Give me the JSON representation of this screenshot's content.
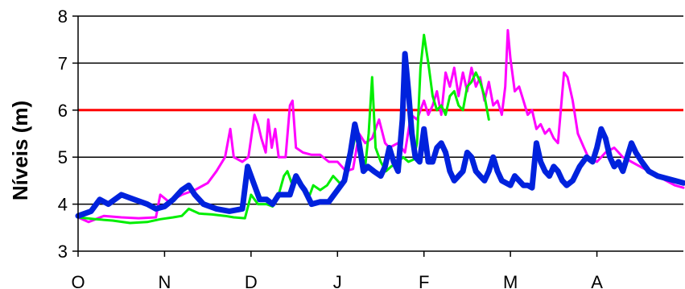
{
  "chart_data": {
    "type": "line",
    "title": "",
    "xlabel": "",
    "ylabel": "Níveis (m)",
    "ylim": [
      3,
      8
    ],
    "yticks": [
      3,
      4,
      5,
      6,
      7,
      8
    ],
    "xlim": [
      0,
      7
    ],
    "xticks": [
      {
        "label": "O",
        "x": 0
      },
      {
        "label": "N",
        "x": 1
      },
      {
        "label": "D",
        "x": 2
      },
      {
        "label": "J",
        "x": 3
      },
      {
        "label": "F",
        "x": 4
      },
      {
        "label": "M",
        "x": 5
      },
      {
        "label": "A",
        "x": 6
      }
    ],
    "grid": {
      "horizontal": true,
      "vertical": false
    },
    "legend": "none",
    "reference_line": {
      "y": 6,
      "color": "#ff0000"
    },
    "series": [
      {
        "color": "#ff00ff",
        "width": 3,
        "points": [
          [
            0.0,
            3.72
          ],
          [
            0.12,
            3.62
          ],
          [
            0.3,
            3.75
          ],
          [
            0.5,
            3.72
          ],
          [
            0.7,
            3.7
          ],
          [
            0.9,
            3.72
          ],
          [
            0.95,
            4.2
          ],
          [
            1.05,
            4.05
          ],
          [
            1.2,
            4.2
          ],
          [
            1.35,
            4.3
          ],
          [
            1.5,
            4.45
          ],
          [
            1.6,
            4.7
          ],
          [
            1.7,
            5.0
          ],
          [
            1.76,
            5.6
          ],
          [
            1.8,
            5.0
          ],
          [
            1.9,
            4.9
          ],
          [
            1.97,
            5.0
          ],
          [
            2.04,
            5.9
          ],
          [
            2.08,
            5.7
          ],
          [
            2.12,
            5.4
          ],
          [
            2.17,
            5.1
          ],
          [
            2.2,
            5.8
          ],
          [
            2.24,
            5.2
          ],
          [
            2.28,
            5.6
          ],
          [
            2.32,
            5.0
          ],
          [
            2.4,
            5.0
          ],
          [
            2.45,
            6.1
          ],
          [
            2.48,
            6.2
          ],
          [
            2.52,
            5.2
          ],
          [
            2.6,
            5.1
          ],
          [
            2.7,
            5.05
          ],
          [
            2.8,
            5.05
          ],
          [
            2.9,
            4.9
          ],
          [
            3.0,
            4.9
          ],
          [
            3.1,
            4.7
          ],
          [
            3.18,
            4.75
          ],
          [
            3.25,
            5.5
          ],
          [
            3.32,
            5.3
          ],
          [
            3.4,
            5.4
          ],
          [
            3.48,
            5.8
          ],
          [
            3.55,
            5.3
          ],
          [
            3.6,
            5.2
          ],
          [
            3.7,
            5.3
          ],
          [
            3.78,
            5.1
          ],
          [
            3.85,
            5.9
          ],
          [
            3.92,
            5.8
          ],
          [
            4.0,
            6.2
          ],
          [
            4.05,
            5.9
          ],
          [
            4.1,
            6.1
          ],
          [
            4.15,
            6.4
          ],
          [
            4.2,
            5.9
          ],
          [
            4.25,
            6.8
          ],
          [
            4.3,
            6.5
          ],
          [
            4.35,
            6.9
          ],
          [
            4.4,
            6.3
          ],
          [
            4.45,
            6.8
          ],
          [
            4.5,
            6.4
          ],
          [
            4.55,
            6.9
          ],
          [
            4.6,
            6.5
          ],
          [
            4.65,
            6.7
          ],
          [
            4.7,
            6.2
          ],
          [
            4.75,
            6.6
          ],
          [
            4.8,
            6.1
          ],
          [
            4.85,
            6.2
          ],
          [
            4.9,
            5.9
          ],
          [
            4.94,
            6.5
          ],
          [
            4.97,
            7.7
          ],
          [
            5.0,
            7.1
          ],
          [
            5.05,
            6.4
          ],
          [
            5.1,
            6.5
          ],
          [
            5.15,
            6.2
          ],
          [
            5.2,
            5.9
          ],
          [
            5.25,
            6.0
          ],
          [
            5.3,
            5.6
          ],
          [
            5.35,
            5.7
          ],
          [
            5.4,
            5.5
          ],
          [
            5.45,
            5.6
          ],
          [
            5.5,
            5.4
          ],
          [
            5.55,
            5.3
          ],
          [
            5.62,
            6.8
          ],
          [
            5.66,
            6.7
          ],
          [
            5.72,
            6.2
          ],
          [
            5.78,
            5.5
          ],
          [
            5.85,
            5.2
          ],
          [
            5.9,
            5.0
          ],
          [
            6.0,
            4.9
          ],
          [
            6.1,
            5.1
          ],
          [
            6.2,
            5.2
          ],
          [
            6.3,
            5.0
          ],
          [
            6.4,
            4.9
          ],
          [
            6.5,
            4.8
          ],
          [
            6.6,
            4.7
          ],
          [
            6.7,
            4.6
          ],
          [
            6.8,
            4.5
          ],
          [
            6.9,
            4.4
          ],
          [
            7.0,
            4.35
          ]
        ]
      },
      {
        "color": "#00ee00",
        "width": 3,
        "points": [
          [
            0.0,
            3.72
          ],
          [
            0.2,
            3.68
          ],
          [
            0.4,
            3.65
          ],
          [
            0.6,
            3.6
          ],
          [
            0.8,
            3.62
          ],
          [
            0.95,
            3.68
          ],
          [
            1.1,
            3.72
          ],
          [
            1.2,
            3.75
          ],
          [
            1.28,
            3.9
          ],
          [
            1.4,
            3.8
          ],
          [
            1.55,
            3.78
          ],
          [
            1.7,
            3.75
          ],
          [
            1.8,
            3.72
          ],
          [
            1.93,
            3.7
          ],
          [
            2.0,
            4.2
          ],
          [
            2.08,
            4.0
          ],
          [
            2.18,
            4.0
          ],
          [
            2.25,
            3.95
          ],
          [
            2.32,
            4.2
          ],
          [
            2.38,
            4.6
          ],
          [
            2.42,
            4.7
          ],
          [
            2.48,
            4.4
          ],
          [
            2.55,
            4.5
          ],
          [
            2.62,
            4.3
          ],
          [
            2.68,
            4.2
          ],
          [
            2.72,
            4.4
          ],
          [
            2.8,
            4.3
          ],
          [
            2.88,
            4.4
          ],
          [
            2.95,
            4.6
          ],
          [
            3.0,
            4.5
          ],
          [
            3.05,
            4.4
          ],
          [
            3.12,
            4.8
          ],
          [
            3.18,
            5.2
          ],
          [
            3.22,
            5.6
          ],
          [
            3.28,
            5.0
          ],
          [
            3.32,
            4.8
          ],
          [
            3.36,
            5.5
          ],
          [
            3.4,
            6.7
          ],
          [
            3.44,
            5.2
          ],
          [
            3.5,
            4.9
          ],
          [
            3.56,
            4.7
          ],
          [
            3.62,
            4.8
          ],
          [
            3.7,
            4.9
          ],
          [
            3.76,
            5.0
          ],
          [
            3.82,
            4.9
          ],
          [
            3.88,
            4.95
          ],
          [
            3.92,
            5.3
          ],
          [
            3.96,
            6.9
          ],
          [
            4.0,
            7.6
          ],
          [
            4.05,
            7.0
          ],
          [
            4.1,
            6.3
          ],
          [
            4.15,
            6.0
          ],
          [
            4.2,
            6.1
          ],
          [
            4.25,
            5.9
          ],
          [
            4.3,
            6.3
          ],
          [
            4.35,
            6.4
          ],
          [
            4.4,
            6.1
          ],
          [
            4.45,
            6.0
          ],
          [
            4.5,
            6.5
          ],
          [
            4.55,
            6.6
          ],
          [
            4.6,
            6.8
          ],
          [
            4.65,
            6.6
          ],
          [
            4.7,
            6.3
          ],
          [
            4.75,
            5.8
          ]
        ]
      },
      {
        "color": "#0022dd",
        "width": 7,
        "points": [
          [
            0.0,
            3.75
          ],
          [
            0.15,
            3.85
          ],
          [
            0.25,
            4.1
          ],
          [
            0.35,
            4.0
          ],
          [
            0.5,
            4.2
          ],
          [
            0.65,
            4.1
          ],
          [
            0.8,
            4.0
          ],
          [
            0.9,
            3.9
          ],
          [
            1.0,
            3.95
          ],
          [
            1.1,
            4.1
          ],
          [
            1.2,
            4.3
          ],
          [
            1.28,
            4.4
          ],
          [
            1.35,
            4.2
          ],
          [
            1.45,
            4.0
          ],
          [
            1.6,
            3.9
          ],
          [
            1.75,
            3.85
          ],
          [
            1.9,
            3.9
          ],
          [
            1.96,
            4.8
          ],
          [
            2.02,
            4.5
          ],
          [
            2.1,
            4.1
          ],
          [
            2.18,
            4.1
          ],
          [
            2.25,
            4.0
          ],
          [
            2.32,
            4.2
          ],
          [
            2.45,
            4.2
          ],
          [
            2.52,
            4.6
          ],
          [
            2.58,
            4.4
          ],
          [
            2.62,
            4.3
          ],
          [
            2.7,
            4.0
          ],
          [
            2.8,
            4.05
          ],
          [
            2.9,
            4.05
          ],
          [
            3.0,
            4.3
          ],
          [
            3.08,
            4.5
          ],
          [
            3.15,
            5.1
          ],
          [
            3.2,
            5.7
          ],
          [
            3.25,
            5.3
          ],
          [
            3.3,
            4.7
          ],
          [
            3.35,
            4.8
          ],
          [
            3.42,
            4.7
          ],
          [
            3.5,
            4.6
          ],
          [
            3.55,
            4.8
          ],
          [
            3.6,
            5.2
          ],
          [
            3.65,
            4.9
          ],
          [
            3.7,
            4.7
          ],
          [
            3.75,
            5.8
          ],
          [
            3.78,
            7.2
          ],
          [
            3.82,
            6.4
          ],
          [
            3.86,
            5.5
          ],
          [
            3.9,
            5.0
          ],
          [
            3.95,
            4.9
          ],
          [
            4.0,
            5.6
          ],
          [
            4.05,
            4.9
          ],
          [
            4.1,
            4.9
          ],
          [
            4.15,
            5.2
          ],
          [
            4.2,
            5.3
          ],
          [
            4.25,
            5.1
          ],
          [
            4.3,
            4.7
          ],
          [
            4.35,
            4.5
          ],
          [
            4.4,
            4.6
          ],
          [
            4.45,
            4.7
          ],
          [
            4.5,
            5.1
          ],
          [
            4.55,
            5.0
          ],
          [
            4.6,
            4.7
          ],
          [
            4.65,
            4.6
          ],
          [
            4.7,
            4.5
          ],
          [
            4.75,
            4.7
          ],
          [
            4.8,
            5.0
          ],
          [
            4.85,
            4.7
          ],
          [
            4.9,
            4.5
          ],
          [
            5.0,
            4.4
          ],
          [
            5.05,
            4.6
          ],
          [
            5.1,
            4.5
          ],
          [
            5.15,
            4.4
          ],
          [
            5.2,
            4.4
          ],
          [
            5.25,
            4.35
          ],
          [
            5.3,
            5.3
          ],
          [
            5.35,
            4.9
          ],
          [
            5.4,
            4.7
          ],
          [
            5.45,
            4.6
          ],
          [
            5.5,
            4.8
          ],
          [
            5.55,
            4.7
          ],
          [
            5.6,
            4.5
          ],
          [
            5.65,
            4.4
          ],
          [
            5.72,
            4.5
          ],
          [
            5.8,
            4.8
          ],
          [
            5.88,
            5.0
          ],
          [
            5.95,
            4.9
          ],
          [
            6.0,
            5.2
          ],
          [
            6.05,
            5.6
          ],
          [
            6.1,
            5.4
          ],
          [
            6.15,
            5.0
          ],
          [
            6.2,
            4.8
          ],
          [
            6.25,
            4.9
          ],
          [
            6.3,
            4.7
          ],
          [
            6.35,
            5.0
          ],
          [
            6.4,
            5.3
          ],
          [
            6.45,
            5.1
          ],
          [
            6.52,
            4.9
          ],
          [
            6.6,
            4.7
          ],
          [
            6.7,
            4.6
          ],
          [
            6.8,
            4.55
          ],
          [
            6.9,
            4.5
          ],
          [
            7.0,
            4.45
          ]
        ]
      }
    ]
  }
}
